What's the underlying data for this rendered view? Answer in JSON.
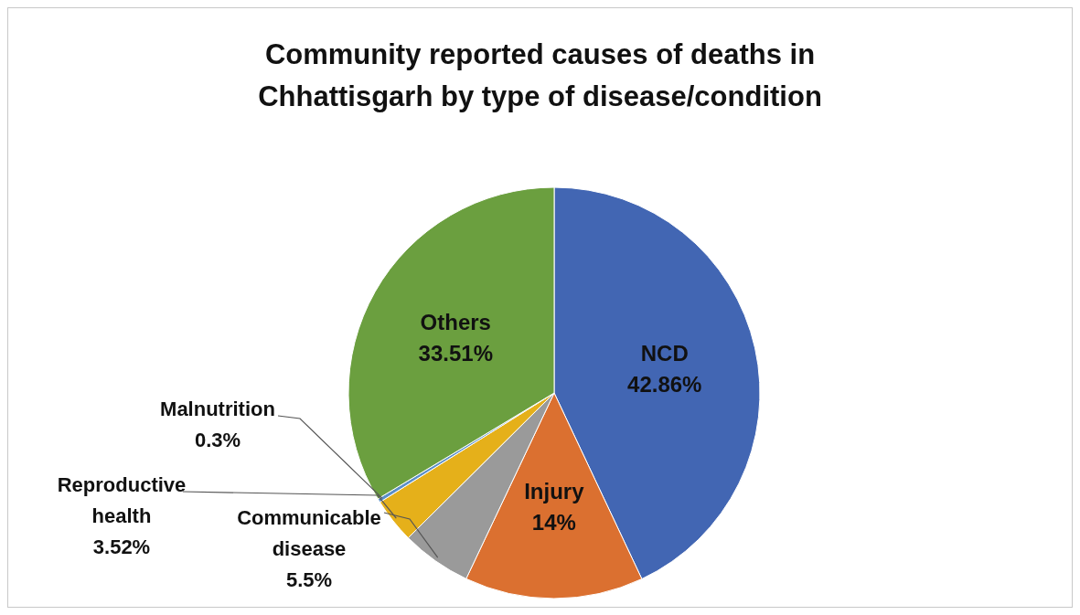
{
  "chart_data": {
    "type": "pie",
    "title": "Community reported causes of deaths in Chhattisgarh by type of disease/condition",
    "categories": [
      "NCD",
      "Injury",
      "Communicable disease",
      "Reproductive health",
      "Malnutrition",
      "Others"
    ],
    "values": [
      42.86,
      14,
      5.5,
      3.52,
      0.3,
      33.51
    ],
    "value_labels": [
      "42.86%",
      "14%",
      "5.5%",
      "3.52%",
      "0.3%",
      "33.51%"
    ],
    "colors": [
      "#4266b3",
      "#db7030",
      "#9a9a9a",
      "#e5b01a",
      "#5b8fc9",
      "#6b9f3f"
    ],
    "legend": false
  }
}
